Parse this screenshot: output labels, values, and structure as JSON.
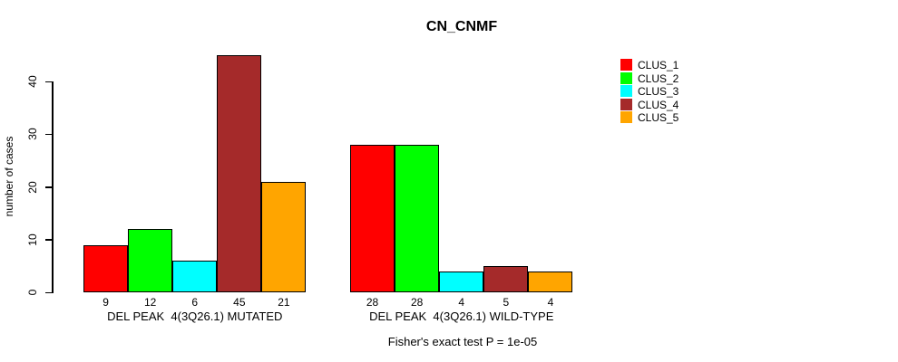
{
  "chart_data": {
    "type": "bar",
    "title": "CN_CNMF",
    "ylabel": "number of cases",
    "xlabel": "",
    "ylim": [
      0,
      45
    ],
    "yticks": [
      0,
      10,
      20,
      30,
      40
    ],
    "grid": false,
    "legend_position": "right",
    "categories": [
      "DEL PEAK  4(3Q26.1) MUTATED",
      "DEL PEAK  4(3Q26.1) WILD-TYPE"
    ],
    "series": [
      {
        "name": "CLUS_1",
        "color": "#FF0000",
        "values": [
          9,
          28
        ]
      },
      {
        "name": "CLUS_2",
        "color": "#00FF00",
        "values": [
          12,
          28
        ]
      },
      {
        "name": "CLUS_3",
        "color": "#00FFFF",
        "values": [
          6,
          4
        ]
      },
      {
        "name": "CLUS_4",
        "color": "#A52A2A",
        "values": [
          45,
          5
        ]
      },
      {
        "name": "CLUS_5",
        "color": "#FFA500",
        "values": [
          21,
          4
        ]
      }
    ],
    "bar_value_labels": {
      "DEL PEAK  4(3Q26.1) MUTATED": [
        9,
        12,
        6,
        45,
        21
      ],
      "DEL PEAK  4(3Q26.1) WILD-TYPE": [
        28,
        28,
        4,
        5,
        4
      ]
    },
    "annotation": "Fisher's exact test P = 1e-05"
  }
}
